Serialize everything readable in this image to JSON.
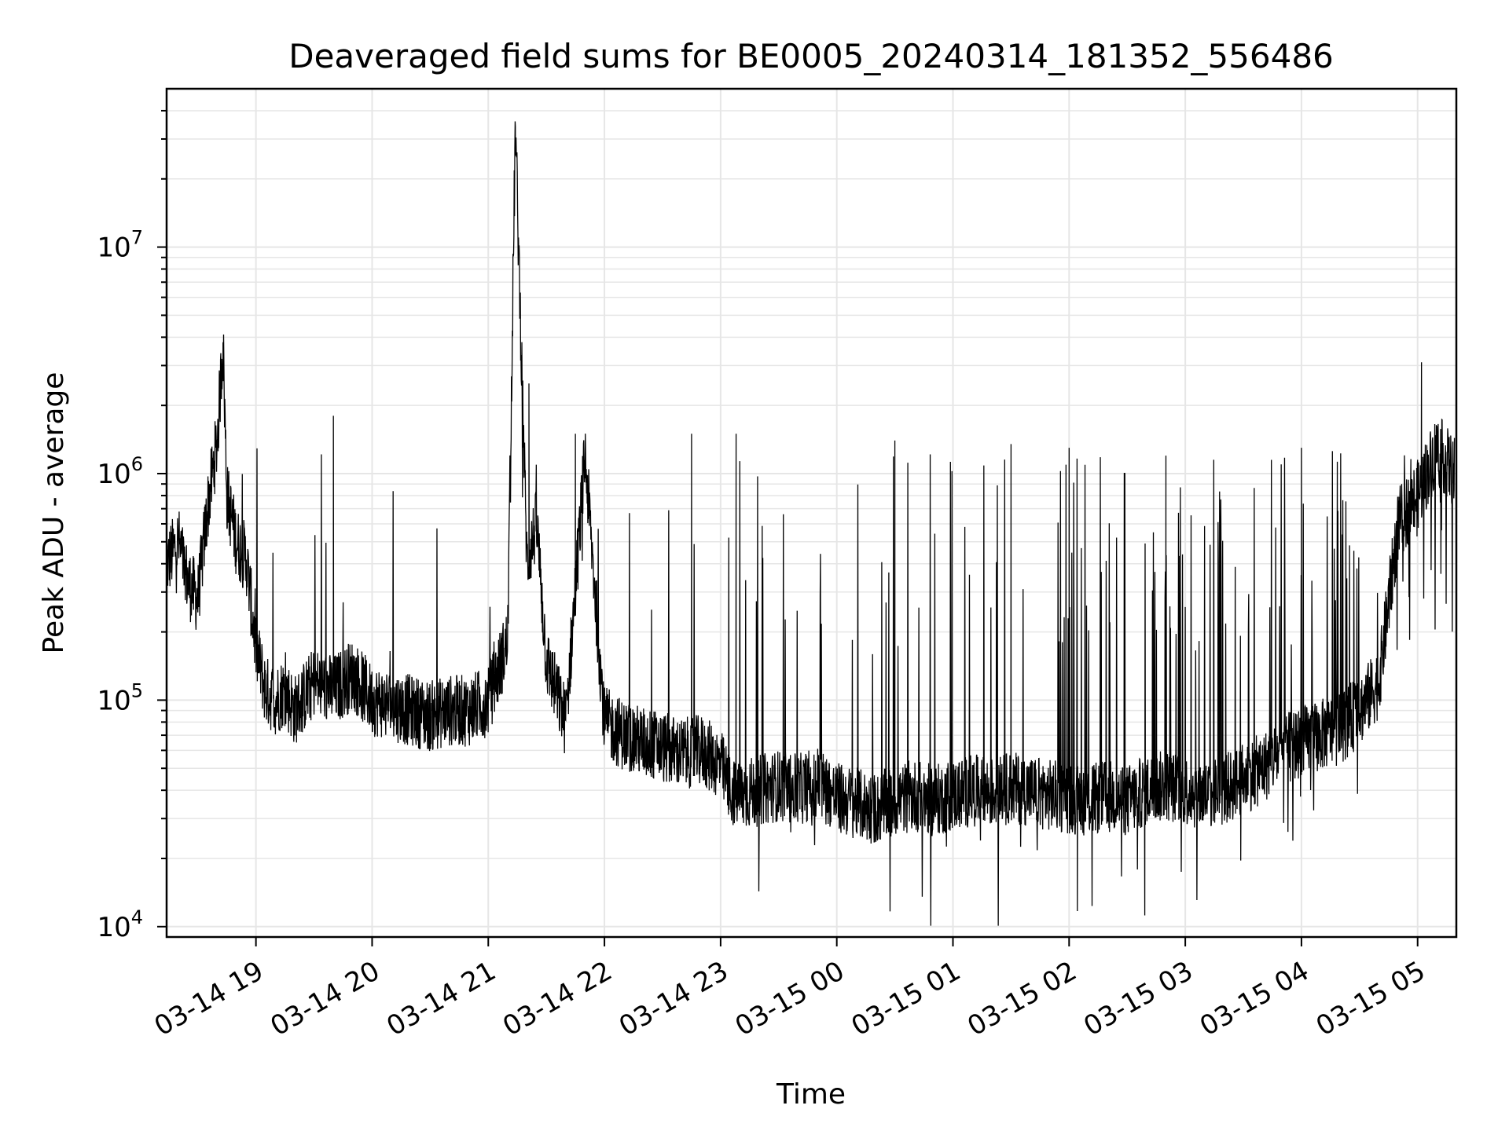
{
  "chart_data": {
    "type": "line",
    "title": "Deaveraged field sums for BE0005_20240314_181352_556486",
    "xlabel": "Time",
    "ylabel": "Peak ADU - average",
    "yscale": "log",
    "grid": true,
    "xlim": [
      "2024-03-14 18:13:52",
      "2024-03-15 05:20:00"
    ],
    "ylim": [
      9000,
      50000000
    ],
    "x_ticks": [
      "03-14 19",
      "03-14 20",
      "03-14 21",
      "03-14 22",
      "03-14 23",
      "03-15 00",
      "03-15 01",
      "03-15 02",
      "03-15 03",
      "03-15 04",
      "03-15 05"
    ],
    "x_tick_times": [
      "2024-03-14 19:00",
      "2024-03-14 20:00",
      "2024-03-14 21:00",
      "2024-03-14 22:00",
      "2024-03-14 23:00",
      "2024-03-15 00:00",
      "2024-03-15 01:00",
      "2024-03-15 02:00",
      "2024-03-15 03:00",
      "2024-03-15 04:00",
      "2024-03-15 05:00"
    ],
    "y_ticks": [
      10000,
      100000,
      1000000,
      10000000
    ],
    "y_tick_labels": [
      {
        "base": "10",
        "exp": "4"
      },
      {
        "base": "10",
        "exp": "5"
      },
      {
        "base": "10",
        "exp": "6"
      },
      {
        "base": "10",
        "exp": "7"
      }
    ],
    "series": [
      {
        "line_color": "#000000",
        "x": [
          "2024-03-14 18:14",
          "2024-03-14 18:20",
          "2024-03-14 18:25",
          "2024-03-14 18:30",
          "2024-03-14 18:35",
          "2024-03-14 18:40",
          "2024-03-14 18:43",
          "2024-03-14 18:45",
          "2024-03-14 18:50",
          "2024-03-14 18:55",
          "2024-03-14 19:00",
          "2024-03-14 19:05",
          "2024-03-14 19:10",
          "2024-03-14 19:15",
          "2024-03-14 19:20",
          "2024-03-14 19:30",
          "2024-03-14 19:40",
          "2024-03-14 19:50",
          "2024-03-14 20:00",
          "2024-03-14 20:10",
          "2024-03-14 20:20",
          "2024-03-14 20:30",
          "2024-03-14 20:40",
          "2024-03-14 20:50",
          "2024-03-14 21:00",
          "2024-03-14 21:10",
          "2024-03-14 21:14",
          "2024-03-14 21:20",
          "2024-03-14 21:25",
          "2024-03-14 21:30",
          "2024-03-14 21:40",
          "2024-03-14 21:50",
          "2024-03-14 22:00",
          "2024-03-14 22:10",
          "2024-03-14 22:20",
          "2024-03-14 22:30",
          "2024-03-14 22:40",
          "2024-03-14 22:50",
          "2024-03-14 23:00",
          "2024-03-14 23:05",
          "2024-03-14 23:10",
          "2024-03-14 23:20",
          "2024-03-14 23:30",
          "2024-03-14 23:40",
          "2024-03-14 23:50",
          "2024-03-15 00:00",
          "2024-03-15 00:10",
          "2024-03-15 00:20",
          "2024-03-15 00:30",
          "2024-03-15 00:40",
          "2024-03-15 00:50",
          "2024-03-15 01:00",
          "2024-03-15 01:10",
          "2024-03-15 01:20",
          "2024-03-15 01:30",
          "2024-03-15 01:40",
          "2024-03-15 01:50",
          "2024-03-15 02:00",
          "2024-03-15 02:10",
          "2024-03-15 02:20",
          "2024-03-15 02:30",
          "2024-03-15 02:40",
          "2024-03-15 02:50",
          "2024-03-15 03:00",
          "2024-03-15 03:10",
          "2024-03-15 03:20",
          "2024-03-15 03:30",
          "2024-03-15 03:40",
          "2024-03-15 03:50",
          "2024-03-15 04:00",
          "2024-03-15 04:10",
          "2024-03-15 04:20",
          "2024-03-15 04:30",
          "2024-03-15 04:40",
          "2024-03-15 04:50",
          "2024-03-15 05:00",
          "2024-03-15 05:10",
          "2024-03-15 05:19"
        ],
        "y": [
          400000,
          500000,
          330000,
          280000,
          700000,
          1400000,
          3800000,
          800000,
          500000,
          420000,
          170000,
          110000,
          100000,
          110000,
          90000,
          120000,
          110000,
          130000,
          100000,
          95000,
          90000,
          85000,
          90000,
          90000,
          100000,
          180000,
          34000000,
          400000,
          600000,
          150000,
          80000,
          1200000,
          80000,
          70000,
          65000,
          62000,
          58000,
          60000,
          52000,
          40000,
          38000,
          40000,
          42000,
          40000,
          44000,
          37000,
          35000,
          33000,
          36000,
          38000,
          36000,
          38000,
          40000,
          39000,
          41000,
          40000,
          38000,
          37000,
          36000,
          38000,
          36000,
          40000,
          42000,
          40000,
          38000,
          40000,
          45000,
          50000,
          60000,
          65000,
          70000,
          75000,
          90000,
          120000,
          600000,
          800000,
          1300000,
          1000000
        ]
      }
    ],
    "peaks": [
      [
        "2024-03-14 18:43",
        3800000
      ],
      [
        "2024-03-14 21:14",
        34000000
      ],
      [
        "2024-03-14 21:21",
        2500000
      ],
      [
        "2024-03-14 19:40",
        1800000
      ],
      [
        "2024-03-14 21:45",
        1500000
      ],
      [
        "2024-03-14 22:45",
        1500000
      ],
      [
        "2024-03-14 23:08",
        1500000
      ],
      [
        "2024-03-15 00:30",
        1400000
      ],
      [
        "2024-03-15 01:30",
        1350000
      ],
      [
        "2024-03-15 02:00",
        1300000
      ],
      [
        "2024-03-15 02:50",
        1200000
      ],
      [
        "2024-03-15 04:00",
        1300000
      ],
      [
        "2024-03-15 05:02",
        3100000
      ]
    ]
  }
}
